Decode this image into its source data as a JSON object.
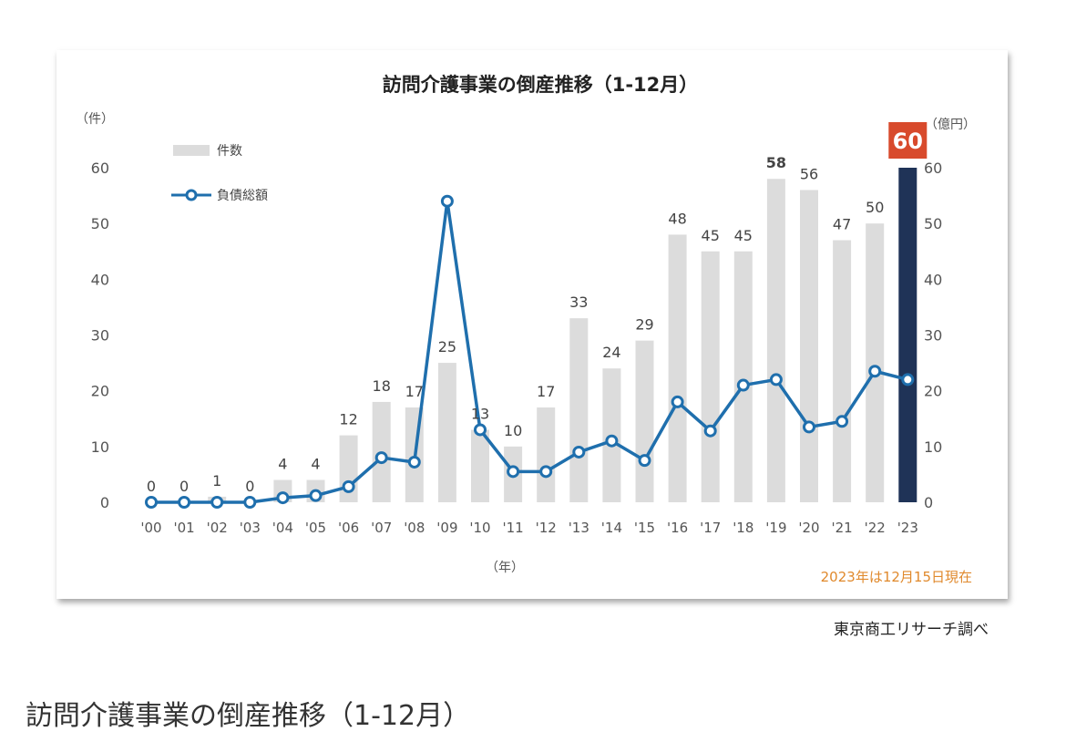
{
  "chart_data": {
    "type": "bar",
    "title": "訪問介護事業の倒産推移（1-12月）",
    "categories": [
      "'00",
      "'01",
      "'02",
      "'03",
      "'04",
      "'05",
      "'06",
      "'07",
      "'08",
      "'09",
      "'10",
      "'11",
      "'12",
      "'13",
      "'14",
      "'15",
      "'16",
      "'17",
      "'18",
      "'19",
      "'20",
      "'21",
      "'22",
      "'23"
    ],
    "series": [
      {
        "name": "件数",
        "type": "bar",
        "axis": "left",
        "values": [
          0,
          0,
          1,
          0,
          4,
          4,
          12,
          18,
          17,
          25,
          13,
          10,
          17,
          33,
          24,
          29,
          48,
          45,
          45,
          58,
          56,
          47,
          50,
          60
        ],
        "labels": [
          "0",
          "0",
          "1",
          "0",
          "4",
          "4",
          "12",
          "18",
          "17",
          "25",
          "13",
          "10",
          "17",
          "33",
          "24",
          "29",
          "48",
          "45",
          "45",
          "58",
          "56",
          "47",
          "50",
          "60"
        ]
      },
      {
        "name": "負債総額",
        "type": "line",
        "axis": "right",
        "values": [
          0,
          0,
          0,
          0,
          0.8,
          1.2,
          2.8,
          8,
          7.2,
          54,
          13,
          5.5,
          5.5,
          9,
          11,
          7.5,
          18,
          12.8,
          21,
          22,
          13.5,
          14.5,
          23.5,
          22
        ]
      }
    ],
    "ylabel_left": "（件）",
    "ylabel_right": "（億円）",
    "xlabel": "（年）",
    "ylim": [
      0,
      60
    ],
    "yticks": [
      "0",
      "10",
      "20",
      "30",
      "40",
      "50",
      "60"
    ],
    "highlight_label": "60",
    "note": "2023年は12月15日現在",
    "colors": {
      "bar": "#dcdcdc",
      "highlight_bar": "#1f3357",
      "line": "#1f6fad",
      "highlight_badge": "#d84a2c",
      "note": "#e0892c"
    },
    "grid": false,
    "legend_position": "top-left"
  },
  "source_text": "東京商工リサーチ調べ",
  "caption": "訪問介護事業の倒産推移（1-12月）"
}
